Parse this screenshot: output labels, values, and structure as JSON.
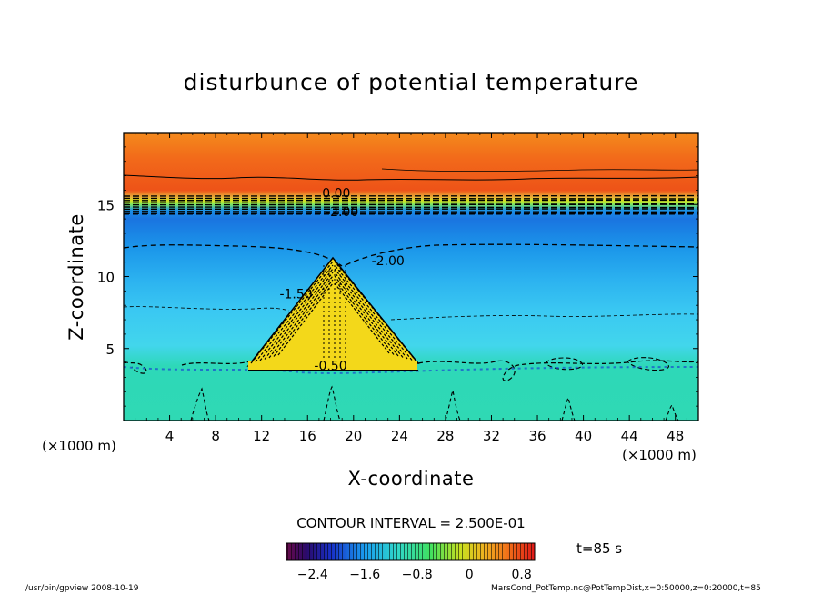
{
  "title": "disturbunce of potential temperature",
  "chart_data": {
    "type": "heatmap",
    "title": "disturbunce of potential temperature",
    "xlabel": "X-coordinate",
    "ylabel": "Z-coordinate",
    "x_unit": "(×1000 m)",
    "y_unit": "(×1000 m)",
    "xlim": [
      0,
      50
    ],
    "ylim": [
      0,
      20
    ],
    "xticks": [
      4,
      8,
      12,
      16,
      20,
      24,
      28,
      32,
      36,
      40,
      44,
      48
    ],
    "yticks": [
      5,
      10,
      15
    ],
    "contour_interval_text": "CONTOUR INTERVAL = 2.500E-01",
    "contour_labels": [
      {
        "text": "0.00",
        "x": 18.5,
        "z": 15.5
      },
      {
        "text": "-2.00",
        "x": 19.0,
        "z": 14.2
      },
      {
        "text": "-2.00",
        "x": 23.0,
        "z": 10.8
      },
      {
        "text": "-1.50",
        "x": 15.0,
        "z": 8.5
      },
      {
        "text": "-0.50",
        "x": 18.0,
        "z": 3.5
      }
    ],
    "colorbar": {
      "range": [
        -2.8,
        1.0
      ],
      "ticks": [
        "-2.4",
        "-1.6",
        "-0.8",
        "0",
        "0.8"
      ]
    },
    "time_label": "t=85 s"
  },
  "footer_left": "/usr/bin/gpview   2008-10-19",
  "footer_right": "MarsCond_PotTemp.nc@PotTempDist,x=0:50000,z=0:20000,t=85"
}
